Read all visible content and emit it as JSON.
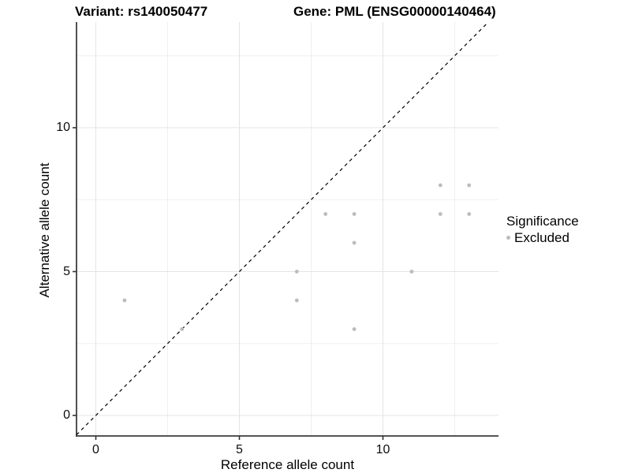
{
  "chart_data": {
    "type": "scatter",
    "title_left": "Variant: rs140050477",
    "title_right": "Gene: PML (ENSG00000140464)",
    "xlabel": "Reference allele count",
    "ylabel": "Alternative allele count",
    "x_ticks": [
      0,
      5,
      10
    ],
    "y_ticks": [
      0,
      5,
      10
    ],
    "x_minor_gridlines": [
      2.5,
      7.5,
      12.5
    ],
    "y_minor_gridlines": [
      2.5,
      7.5,
      12.5
    ],
    "xlim": [
      -0.7,
      14.1
    ],
    "ylim": [
      -0.7,
      13.7
    ],
    "grid": "on",
    "reference_line": {
      "type": "identity",
      "slope": 1,
      "intercept": 0,
      "style": "dashed",
      "color": "#000000"
    },
    "series": [
      {
        "name": "Excluded",
        "color": "#bcbcbc",
        "points": [
          [
            1,
            4
          ],
          [
            3,
            3
          ],
          [
            7,
            4
          ],
          [
            7,
            5
          ],
          [
            8,
            7
          ],
          [
            9,
            3
          ],
          [
            9,
            6
          ],
          [
            9,
            7
          ],
          [
            11,
            5
          ],
          [
            12,
            7
          ],
          [
            12,
            8
          ],
          [
            13,
            7
          ],
          [
            13,
            8
          ]
        ]
      }
    ],
    "legend": {
      "title": "Significance",
      "position": "right",
      "items": [
        {
          "label": "Excluded",
          "color": "#bcbcbc",
          "marker": "circle"
        }
      ]
    }
  }
}
